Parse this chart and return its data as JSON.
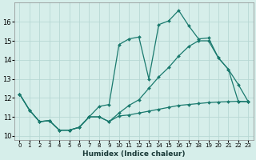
{
  "xlabel": "Humidex (Indice chaleur)",
  "x_ticks": [
    0,
    1,
    2,
    3,
    4,
    5,
    6,
    7,
    8,
    9,
    10,
    11,
    12,
    13,
    14,
    15,
    16,
    17,
    18,
    19,
    20,
    21,
    22,
    23
  ],
  "xlim": [
    -0.5,
    23.5
  ],
  "ylim": [
    9.8,
    17.0
  ],
  "y_ticks": [
    10,
    11,
    12,
    13,
    14,
    15,
    16
  ],
  "bg_color": "#d6eeea",
  "grid_color": "#b8d8d4",
  "line_color": "#1a7a6e",
  "line1_x": [
    0,
    1,
    2,
    3,
    4,
    5,
    6,
    7,
    8,
    9,
    10,
    11,
    12,
    13,
    14,
    15,
    16,
    17,
    18,
    19,
    20,
    21,
    22,
    23
  ],
  "line1_y": [
    12.2,
    11.35,
    10.75,
    10.8,
    10.3,
    10.3,
    10.45,
    11.0,
    11.55,
    11.65,
    14.8,
    15.1,
    15.2,
    13.0,
    15.85,
    16.05,
    16.6,
    15.8,
    15.1,
    15.15,
    14.1,
    13.5,
    11.8,
    11.8
  ],
  "line2_x": [
    0,
    1,
    2,
    3,
    4,
    5,
    6,
    7,
    8,
    9,
    10,
    11,
    12,
    13,
    14,
    15,
    16,
    17,
    18,
    19,
    20,
    21,
    22,
    23
  ],
  "line2_y": [
    12.2,
    11.35,
    10.75,
    10.8,
    10.3,
    10.3,
    10.45,
    11.0,
    11.0,
    10.75,
    11.05,
    11.1,
    11.2,
    11.3,
    11.4,
    11.5,
    11.6,
    11.65,
    11.7,
    11.75,
    11.78,
    11.8,
    11.82,
    11.8
  ],
  "line3_x": [
    0,
    1,
    2,
    3,
    4,
    5,
    6,
    7,
    8,
    9,
    10,
    11,
    12,
    13,
    14,
    15,
    16,
    17,
    18,
    19,
    20,
    21,
    22,
    23
  ],
  "line3_y": [
    12.2,
    11.35,
    10.75,
    10.8,
    10.3,
    10.3,
    10.45,
    11.0,
    11.0,
    10.75,
    11.2,
    11.6,
    11.9,
    12.5,
    13.1,
    13.6,
    14.2,
    14.7,
    15.0,
    15.0,
    14.1,
    13.5,
    12.7,
    11.8
  ]
}
